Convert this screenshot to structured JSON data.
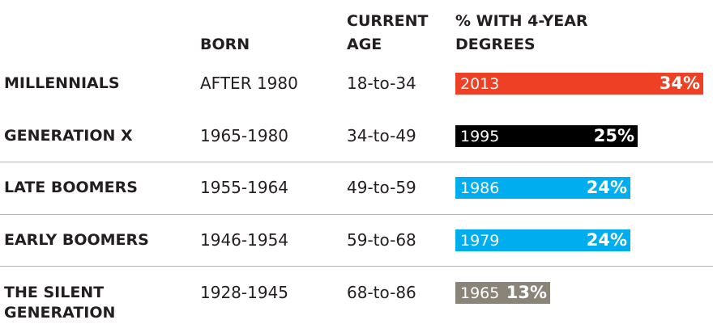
{
  "header": {
    "born": "BORN",
    "current_age": "CURRENT AGE",
    "degrees": "% WITH 4-YEAR DEGREES"
  },
  "chart_data": {
    "type": "bar",
    "categories": [
      "MILLENNIALS",
      "GENERATION X",
      "LATE BOOMERS",
      "EARLY BOOMERS",
      "THE SILENT GENERATION"
    ],
    "born": [
      "AFTER 1980",
      "1965-1980",
      "1955-1964",
      "1946-1954",
      "1928-1945"
    ],
    "current_age": [
      "18-to-34",
      "34-to-49",
      "49-to-59",
      "59-to-68",
      "68-to-86"
    ],
    "years": [
      "2013",
      "1995",
      "1986",
      "1979",
      "1965"
    ],
    "values": [
      34,
      25,
      24,
      24,
      13
    ],
    "value_labels": [
      "34%",
      "25%",
      "24%",
      "24%",
      "13%"
    ],
    "colors": [
      "#ee4024",
      "#000000",
      "#00aeef",
      "#00aeef",
      "#8a8378"
    ]
  }
}
